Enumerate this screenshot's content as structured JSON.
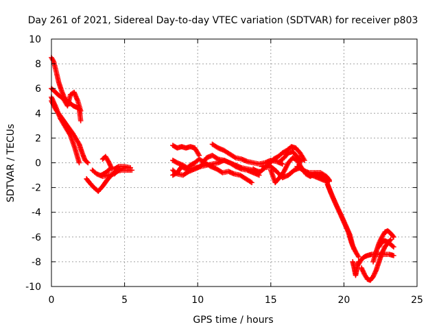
{
  "chart_data": {
    "type": "scatter",
    "title": "Day 261 of 2021, Sidereal Day-to-day VTEC variation (SDTVAR) for receiver p803",
    "xlabel": "GPS time / hours",
    "ylabel": "SDTVAR / TECUs",
    "xlim": [
      0,
      25
    ],
    "ylim": [
      -10,
      10
    ],
    "x_ticks": [
      0,
      5,
      10,
      15,
      20,
      25
    ],
    "y_ticks": [
      -10,
      -8,
      -6,
      -4,
      -2,
      0,
      2,
      4,
      6,
      8,
      10
    ],
    "grid": true,
    "marker": "plus",
    "series": [
      {
        "name": "SDTVAR",
        "color": "#ff0000",
        "segments": [
          {
            "x": [
              0.0,
              0.15,
              0.3,
              0.5,
              0.7,
              0.9,
              1.1,
              1.3,
              1.5,
              1.7,
              1.9,
              2.0
            ],
            "y": [
              8.5,
              8.2,
              7.5,
              6.5,
              5.8,
              5.2,
              5.0,
              4.8,
              4.6,
              4.5,
              4.4,
              3.4
            ]
          },
          {
            "x": [
              0.0,
              0.2,
              0.45,
              0.8,
              1.1,
              1.3,
              1.55,
              1.8,
              2.0
            ],
            "y": [
              6.0,
              5.8,
              5.5,
              5.2,
              4.6,
              5.5,
              5.7,
              5.0,
              4.2
            ]
          },
          {
            "x": [
              0.0,
              0.3,
              0.6,
              1.0,
              1.3,
              1.6,
              1.9
            ],
            "y": [
              5.3,
              4.5,
              3.6,
              2.8,
              2.2,
              1.2,
              0.0
            ]
          },
          {
            "x": [
              0.0,
              0.3,
              0.6,
              0.9,
              1.2,
              1.5,
              1.9,
              2.1,
              2.3,
              2.5
            ],
            "y": [
              5.0,
              4.3,
              3.8,
              3.3,
              2.8,
              2.3,
              1.5,
              0.8,
              0.2,
              0.0
            ]
          },
          {
            "x": [
              2.4,
              2.6,
              2.9,
              3.2,
              3.5,
              3.8,
              4.1,
              4.4,
              4.8,
              5.2,
              5.5
            ],
            "y": [
              -1.3,
              -1.6,
              -2.0,
              -2.3,
              -1.9,
              -1.4,
              -1.0,
              -0.7,
              -0.6,
              -0.6,
              -0.6
            ]
          },
          {
            "x": [
              3.4,
              3.7,
              4.0,
              4.3,
              4.6,
              5.0,
              5.4
            ],
            "y": [
              -1.0,
              -0.8,
              -0.5,
              -0.5,
              -0.3,
              -0.3,
              -0.4
            ]
          },
          {
            "x": [
              2.8,
              3.1,
              3.5,
              3.9,
              4.3,
              4.7,
              5.1
            ],
            "y": [
              -0.6,
              -0.9,
              -1.1,
              -1.0,
              -0.9,
              -0.5,
              -0.4
            ]
          },
          {
            "x": [
              3.5,
              3.7,
              3.9,
              4.1
            ],
            "y": [
              0.3,
              0.5,
              0.1,
              -0.4
            ]
          },
          {
            "x": [
              8.3,
              8.6,
              8.9,
              9.2,
              9.5,
              9.8,
              10.1,
              10.5,
              10.9,
              11.3,
              11.7,
              12.1,
              12.5,
              12.9,
              13.3,
              13.7
            ],
            "y": [
              -1.0,
              -0.8,
              -0.3,
              -0.5,
              -0.2,
              0.0,
              0.3,
              0.0,
              -0.3,
              -0.5,
              -0.8,
              -0.7,
              -0.9,
              -1.0,
              -1.3,
              -1.6
            ]
          },
          {
            "x": [
              8.3,
              8.6,
              9.0,
              9.4,
              9.8,
              10.2,
              10.6,
              11.0,
              11.4,
              11.8,
              12.2,
              12.6,
              13.0,
              13.4,
              13.8,
              14.2
            ],
            "y": [
              0.2,
              0.0,
              -0.2,
              -0.5,
              -0.4,
              -0.3,
              -0.2,
              -0.1,
              0.0,
              0.2,
              0.0,
              -0.3,
              -0.5,
              -0.6,
              -0.8,
              -1.0
            ]
          },
          {
            "x": [
              8.3,
              8.6,
              9.0,
              9.4,
              9.8,
              10.2,
              10.6,
              11.0,
              11.4,
              11.8,
              12.2,
              12.6,
              13.0,
              13.4,
              13.8,
              14.2
            ],
            "y": [
              -0.6,
              -0.9,
              -1.0,
              -0.7,
              -0.5,
              -0.3,
              0.4,
              0.6,
              0.3,
              0.2,
              0.0,
              -0.2,
              -0.4,
              -0.5,
              -0.6,
              -0.7
            ]
          },
          {
            "x": [
              8.3,
              8.6,
              8.9,
              9.2,
              9.5,
              9.8,
              10.1
            ],
            "y": [
              1.4,
              1.2,
              1.3,
              1.2,
              1.3,
              1.2,
              0.6
            ]
          },
          {
            "x": [
              11.0,
              11.4,
              11.8,
              12.2,
              12.6,
              13.0,
              13.4,
              13.8,
              14.2,
              14.6,
              15.0,
              15.4,
              15.8
            ],
            "y": [
              1.5,
              1.2,
              1.0,
              0.7,
              0.4,
              0.3,
              0.1,
              0.0,
              -0.1,
              0.0,
              0.2,
              0.1,
              -0.1
            ]
          },
          {
            "x": [
              13.8,
              14.2,
              14.6,
              15.0,
              15.4,
              15.8,
              16.2,
              16.6,
              17.0,
              17.4,
              17.8,
              18.2,
              18.6,
              19.0
            ],
            "y": [
              -0.5,
              -0.8,
              -0.4,
              -0.3,
              -0.7,
              -1.2,
              -1.0,
              -0.6,
              -0.4,
              -0.8,
              -1.0,
              -1.2,
              -1.4,
              -1.5
            ]
          },
          {
            "x": [
              14.4,
              14.8,
              15.2,
              15.5,
              15.8,
              16.1,
              16.4,
              16.7,
              17.0,
              17.3
            ],
            "y": [
              -0.3,
              -0.2,
              0.3,
              0.5,
              0.8,
              1.0,
              1.3,
              1.2,
              0.8,
              0.2
            ]
          },
          {
            "x": [
              15.0,
              15.3,
              15.6,
              15.9,
              16.2,
              16.5,
              16.8,
              17.1,
              17.4,
              17.7,
              18.0,
              18.3,
              18.6,
              18.9
            ],
            "y": [
              -0.6,
              -1.6,
              -1.2,
              -0.7,
              0.0,
              0.4,
              0.2,
              -0.4,
              -0.9,
              -1.1,
              -0.9,
              -1.0,
              -1.3,
              -1.5
            ]
          },
          {
            "x": [
              15.6,
              15.9,
              16.2,
              16.5,
              16.8,
              17.1
            ],
            "y": [
              0.1,
              0.4,
              0.8,
              0.9,
              0.5,
              0.1
            ]
          },
          {
            "x": [
              16.8,
              17.2,
              17.6,
              18.0,
              18.4,
              18.8,
              19.0
            ],
            "y": [
              -0.3,
              -0.6,
              -0.8,
              -0.8,
              -0.8,
              -1.1,
              -1.4
            ]
          },
          {
            "x": [
              18.8,
              19.1,
              19.4,
              19.7,
              20.0,
              20.3,
              20.5,
              20.7
            ],
            "y": [
              -1.5,
              -2.4,
              -3.2,
              -4.0,
              -4.8,
              -5.6,
              -6.4,
              -7.0
            ]
          },
          {
            "x": [
              18.9,
              19.2,
              19.5,
              19.8,
              20.1,
              20.4,
              20.6,
              20.8,
              21.0
            ],
            "y": [
              -1.8,
              -2.7,
              -3.5,
              -4.2,
              -5.0,
              -5.8,
              -6.7,
              -7.2,
              -7.6
            ]
          },
          {
            "x": [
              20.6,
              20.7,
              20.8,
              20.9,
              21.0
            ],
            "y": [
              -8.0,
              -8.5,
              -9.1,
              -8.5,
              -8.0
            ]
          },
          {
            "x": [
              21.2,
              21.4,
              21.6,
              21.8,
              22.0,
              22.2,
              22.4,
              22.6,
              22.8,
              23.0,
              23.2
            ],
            "y": [
              -8.5,
              -9.0,
              -9.4,
              -9.5,
              -9.2,
              -8.7,
              -8.0,
              -7.3,
              -6.8,
              -6.5,
              -6.2
            ]
          },
          {
            "x": [
              21.0,
              21.2,
              21.4,
              21.6,
              21.9,
              22.2,
              22.5,
              22.8,
              23.1,
              23.4
            ],
            "y": [
              -8.2,
              -7.8,
              -7.6,
              -7.5,
              -7.4,
              -7.4,
              -7.4,
              -7.4,
              -7.4,
              -7.5
            ]
          },
          {
            "x": [
              22.0,
              22.2,
              22.4,
              22.6,
              22.8,
              23.0,
              23.2,
              23.4
            ],
            "y": [
              -8.0,
              -7.2,
              -6.5,
              -6.0,
              -5.6,
              -5.5,
              -5.7,
              -6.0
            ]
          },
          {
            "x": [
              22.4,
              22.6,
              22.8,
              23.0,
              23.2,
              23.4
            ],
            "y": [
              -6.8,
              -6.4,
              -6.3,
              -6.4,
              -6.6,
              -6.8
            ]
          }
        ]
      }
    ]
  }
}
